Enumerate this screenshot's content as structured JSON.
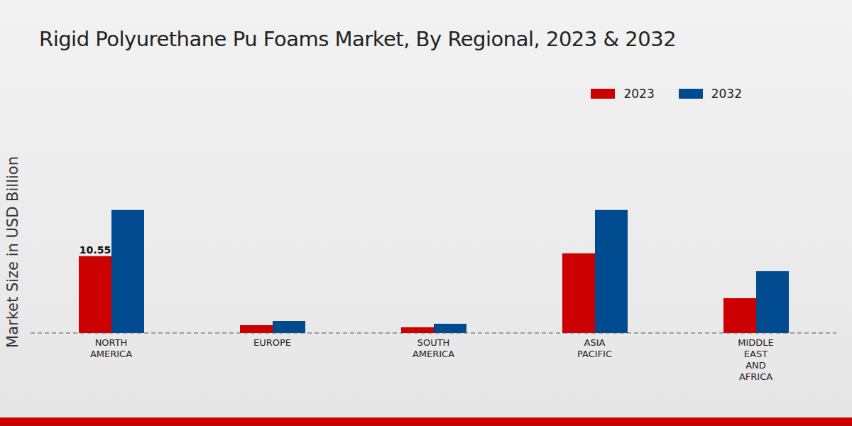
{
  "chart_data": {
    "type": "bar",
    "title": "Rigid Polyurethane Pu Foams Market, By Regional, 2023 & 2032",
    "y_label": "Market Size in USD Billion",
    "categories": [
      "NORTH AMERICA",
      "EUROPE",
      "SOUTH AMERICA",
      "ASIA PACIFIC",
      "MIDDLE EAST AND AFRICA"
    ],
    "series": [
      {
        "name": "2023",
        "color": "#cc0000",
        "values": [
          10.55,
          1.07,
          0.78,
          10.94,
          4.79
        ],
        "data_labels": true,
        "value_labels": [
          "10.55",
          null,
          null,
          null,
          null
        ]
      },
      {
        "name": "2032",
        "color": "#004a8f",
        "values": [
          16.9,
          1.66,
          1.27,
          16.9,
          8.5
        ]
      }
    ],
    "ylim": [
      0,
      20
    ],
    "yticks": [],
    "tick_labels": "x",
    "grid": false,
    "legend": "upper right"
  }
}
